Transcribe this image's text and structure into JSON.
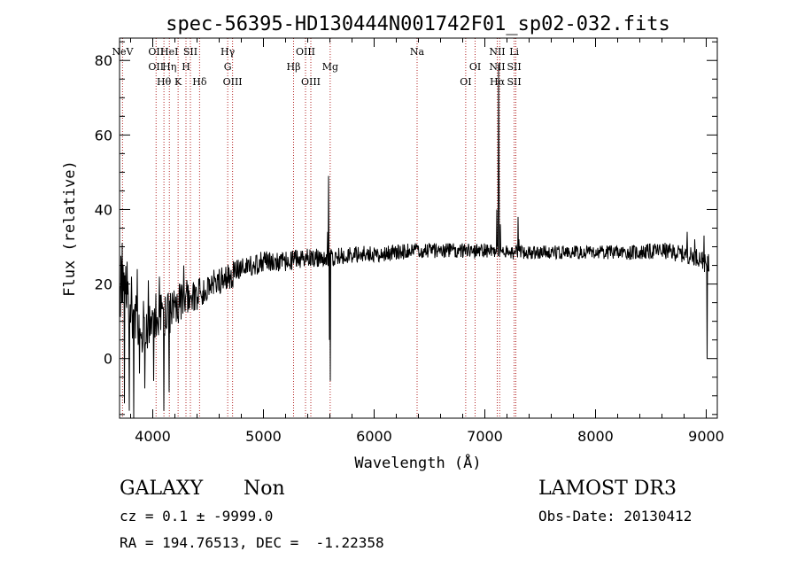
{
  "chart_data": {
    "type": "line",
    "title": "spec-56395-HD130444N001742F01_sp02-032.fits",
    "xlabel": "Wavelength (Å)",
    "ylabel": "Flux (relative)",
    "xlim": [
      3700,
      9100
    ],
    "ylim": [
      -16,
      86
    ],
    "xticks": [
      4000,
      5000,
      6000,
      7000,
      8000,
      9000
    ],
    "yticks": [
      0,
      20,
      40,
      60,
      80
    ],
    "x_minor_step": 200,
    "y_minor_step": 5,
    "grid": false,
    "anchors": [
      [
        3700,
        20
      ],
      [
        3750,
        18
      ],
      [
        3800,
        15
      ],
      [
        3850,
        12
      ],
      [
        3900,
        10
      ],
      [
        3950,
        9
      ],
      [
        4000,
        10
      ],
      [
        4050,
        12
      ],
      [
        4100,
        11
      ],
      [
        4150,
        12
      ],
      [
        4200,
        14
      ],
      [
        4250,
        15
      ],
      [
        4300,
        16
      ],
      [
        4350,
        17
      ],
      [
        4400,
        17
      ],
      [
        4450,
        18
      ],
      [
        4500,
        19
      ],
      [
        4600,
        21
      ],
      [
        4700,
        22
      ],
      [
        4800,
        24
      ],
      [
        4900,
        25
      ],
      [
        5000,
        26
      ],
      [
        5200,
        26
      ],
      [
        5400,
        27
      ],
      [
        5600,
        27
      ],
      [
        5800,
        28
      ],
      [
        6000,
        28
      ],
      [
        6200,
        28.5
      ],
      [
        6400,
        29
      ],
      [
        6600,
        29
      ],
      [
        6800,
        29
      ],
      [
        7000,
        29
      ],
      [
        7200,
        28.5
      ],
      [
        7400,
        28.5
      ],
      [
        7600,
        28.5
      ],
      [
        7800,
        28.5
      ],
      [
        8000,
        28.5
      ],
      [
        8200,
        28.5
      ],
      [
        8400,
        28.5
      ],
      [
        8600,
        29
      ],
      [
        8800,
        28
      ],
      [
        8950,
        27
      ],
      [
        9000,
        25
      ]
    ],
    "noise_bands": [
      [
        3700,
        9.0
      ],
      [
        3900,
        8.5
      ],
      [
        4000,
        6.5
      ],
      [
        4200,
        5.5
      ],
      [
        4500,
        4.0
      ],
      [
        5000,
        2.8
      ],
      [
        6000,
        2.2
      ],
      [
        7000,
        1.9
      ],
      [
        8000,
        1.8
      ],
      [
        9000,
        2.5
      ]
    ],
    "spikes": [
      [
        3725,
        31
      ],
      [
        3745,
        -12
      ],
      [
        3770,
        26
      ],
      [
        3790,
        -14
      ],
      [
        3810,
        22
      ],
      [
        3830,
        -16
      ],
      [
        3860,
        24
      ],
      [
        3880,
        -4
      ],
      [
        3930,
        -8
      ],
      [
        3960,
        21
      ],
      [
        4010,
        -6
      ],
      [
        4060,
        22
      ],
      [
        4100,
        -14
      ],
      [
        4150,
        -9
      ],
      [
        4280,
        25
      ],
      [
        4600,
        24
      ],
      [
        5580,
        34
      ],
      [
        5590,
        49
      ],
      [
        5605,
        28
      ],
      [
        5597,
        5
      ],
      [
        5603,
        -6
      ],
      [
        7095,
        28
      ],
      [
        7110,
        40
      ],
      [
        7125,
        79
      ],
      [
        7130,
        50
      ],
      [
        7140,
        36
      ],
      [
        7153,
        29
      ],
      [
        7300,
        38
      ],
      [
        7310,
        32
      ],
      [
        8830,
        34
      ],
      [
        8895,
        32
      ],
      [
        8980,
        33
      ],
      [
        9010,
        0
      ],
      [
        9020,
        28
      ]
    ],
    "lines": [
      {
        "w": 3727,
        "l1": "NeV",
        "l2": "",
        "l3": ""
      },
      {
        "w": 4030,
        "l1": "OII",
        "l2": "OII",
        "l3": ""
      },
      {
        "w": 4101,
        "l1": "",
        "l2": "",
        "l3": "Hθ"
      },
      {
        "w": 4150,
        "l1": "HeI",
        "l2": "Hη",
        "l3": ""
      },
      {
        "w": 4229,
        "l1": "",
        "l2": "",
        "l3": "K"
      },
      {
        "w": 4300,
        "l1": "",
        "l2": "H",
        "l3": ""
      },
      {
        "w": 4340,
        "l1": "SII",
        "l2": "",
        "l3": ""
      },
      {
        "w": 4423,
        "l1": "",
        "l2": "",
        "l3": "Hδ"
      },
      {
        "w": 4677,
        "l1": "Hγ",
        "l2": "G",
        "l3": ""
      },
      {
        "w": 4721,
        "l1": "",
        "l2": "",
        "l3": "OIII"
      },
      {
        "w": 5272,
        "l1": "",
        "l2": "Hβ",
        "l3": ""
      },
      {
        "w": 5380,
        "l1": "OIII",
        "l2": "",
        "l3": ""
      },
      {
        "w": 5428,
        "l1": "",
        "l2": "",
        "l3": "OIII"
      },
      {
        "w": 5603,
        "l1": "",
        "l2": "Mg",
        "l3": ""
      },
      {
        "w": 6388,
        "l1": "Na",
        "l2": "",
        "l3": ""
      },
      {
        "w": 6827,
        "l1": "",
        "l2": "",
        "l3": "OI"
      },
      {
        "w": 6912,
        "l1": "",
        "l2": "OI",
        "l3": ""
      },
      {
        "w": 7112,
        "l1": "NII",
        "l2": "NII",
        "l3": "Hα"
      },
      {
        "w": 7134,
        "l1": "",
        "l2": "",
        "l3": ""
      },
      {
        "w": 7265,
        "l1": "Li",
        "l2": "SII",
        "l3": "SII"
      },
      {
        "w": 7280,
        "l1": "",
        "l2": "",
        "l3": ""
      }
    ]
  },
  "info": {
    "object_type": "GALAXY",
    "subclass": "Non",
    "survey": "LAMOST DR3",
    "cz_line": "cz = 0.1 ± -9999.0",
    "obs_date_line": "Obs-Date: 20130412",
    "coords_line": "RA = 194.76513, DEC =  -1.22358"
  }
}
